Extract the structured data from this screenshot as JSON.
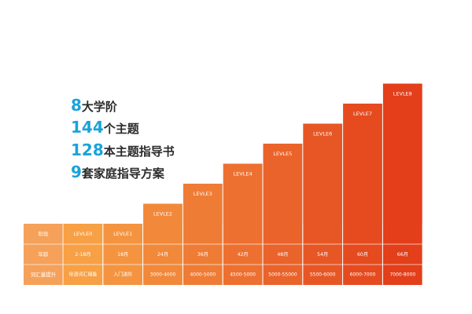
{
  "headlines": [
    {
      "num": "8",
      "text": "大学阶"
    },
    {
      "num": "144",
      "text": "个主题"
    },
    {
      "num": "128",
      "text": "本主题指导书"
    },
    {
      "num": "9",
      "text": "套家庭指导方案"
    }
  ],
  "chart_data": {
    "type": "bar",
    "title": "",
    "row_headers": [
      "阶段",
      "年龄",
      "词汇量提升"
    ],
    "categories": [
      "LEVLE0",
      "LEVLE1",
      "LEVLE2",
      "LEVLE3",
      "LEVLE4",
      "LEVLE5",
      "LEVLE6",
      "LEVLE7",
      "LEVLE8"
    ],
    "values": [
      0,
      0,
      1,
      2,
      3,
      4,
      5,
      6,
      7
    ],
    "ages": [
      "2-18月",
      "18月",
      "24月",
      "36月",
      "42月",
      "48月",
      "54月",
      "60月",
      "66月"
    ],
    "vocab": [
      "母语词汇储备",
      "入门进阶",
      "3000-4000",
      "4000-5000",
      "4500-5000",
      "5000-55000",
      "5500-6000",
      "6000-7000",
      "7000-8000"
    ],
    "colors": {
      "header_cell": "#f5a15a",
      "light": "#f7a045",
      "dark": "#e23f1a",
      "headline_number": "#1aa3d9"
    }
  }
}
